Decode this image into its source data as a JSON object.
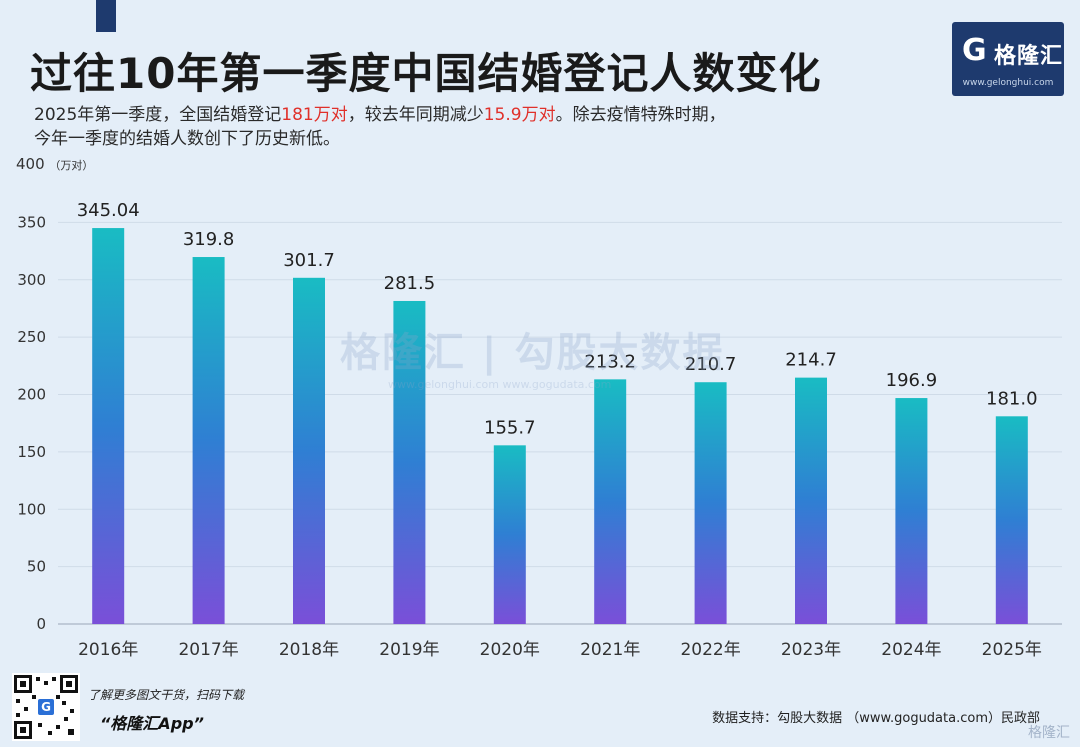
{
  "header": {
    "title": "过往10年第一季度中国结婚登记人数变化",
    "subtitle_line1_a": "2025年第一季度，全国结婚登记",
    "subtitle_line1_b": "181万对",
    "subtitle_line1_c": "，较去年同期减少",
    "subtitle_line1_d": "15.9万对",
    "subtitle_line1_e": "。除去疫情特殊时期，",
    "subtitle_line2": "今年一季度的结婚人数创下了历史新低。"
  },
  "logo": {
    "mark": "G",
    "name": "格隆汇",
    "url": "www.gelonghui.com"
  },
  "watermark": {
    "main": "格隆汇 | 勾股大数据",
    "sub": "www.gelonghui.com    www.gogudata.com"
  },
  "chart_data": {
    "type": "bar",
    "title": "过往10年第一季度中国结婚登记人数变化",
    "ylabel": "400",
    "yunit": "（万对）",
    "categories": [
      "2016年",
      "2017年",
      "2018年",
      "2019年",
      "2020年",
      "2021年",
      "2022年",
      "2023年",
      "2024年",
      "2025年"
    ],
    "values": [
      345.04,
      319.8,
      301.7,
      281.5,
      155.7,
      213.2,
      210.7,
      214.7,
      196.9,
      181.0
    ],
    "value_labels": [
      "345.04",
      "319.8",
      "301.7",
      "281.5",
      "155.7",
      "213.2",
      "210.7",
      "214.7",
      "196.9",
      "181.0"
    ],
    "yticks": [
      0,
      50,
      100,
      150,
      200,
      250,
      300,
      350,
      400
    ],
    "ylim": [
      0,
      400
    ],
    "grid": true,
    "colors": {
      "top": "#19bcc3",
      "mid": "#2f7fd3",
      "bottom": "#7a4fd8"
    }
  },
  "footer": {
    "qr_badge": "G",
    "promo_line1": "了解更多图文干货，扫码下载",
    "promo_line2": "“格隆汇App”",
    "source": "数据支持：勾股大数据 （www.gogudata.com）民政部",
    "corner_watermark": "格隆汇"
  }
}
